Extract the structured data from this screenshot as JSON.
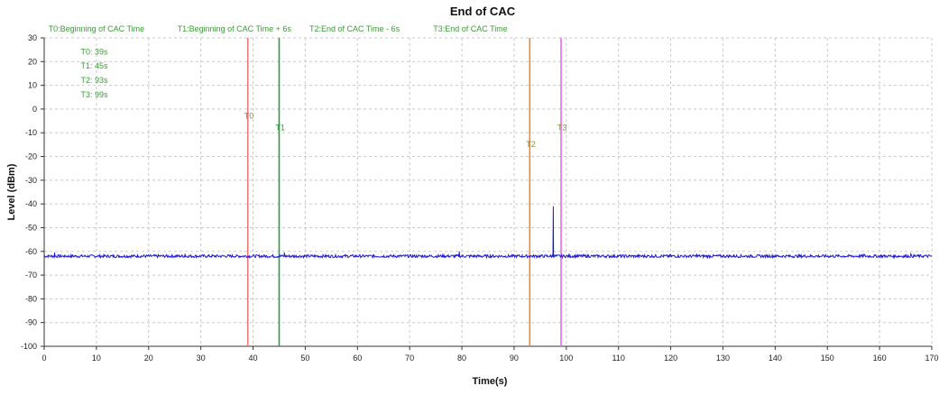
{
  "chart_data": {
    "type": "line",
    "title": "End of CAC",
    "xlabel": "Time(s)",
    "ylabel": "Level (dBm)",
    "xlim": [
      0,
      170
    ],
    "ylim": [
      -100,
      30
    ],
    "x_ticks": [
      0,
      10,
      20,
      30,
      40,
      50,
      60,
      70,
      80,
      90,
      100,
      110,
      120,
      130,
      140,
      150,
      160,
      170
    ],
    "y_ticks": [
      30,
      20,
      10,
      0,
      -10,
      -20,
      -30,
      -40,
      -50,
      -60,
      -70,
      -80,
      -90,
      -100
    ],
    "grid": true,
    "series": [
      {
        "color": "#1a1ad6",
        "baseline": -62,
        "x": [
          0,
          2,
          4,
          9,
          18,
          27,
          38,
          45,
          46,
          57,
          63,
          72,
          79,
          79.5,
          85,
          93,
          97,
          97.5,
          97.6,
          98,
          102,
          112,
          125,
          134,
          140,
          152,
          157,
          166,
          170
        ],
        "y": [
          -62,
          -60.5,
          -62,
          -61.5,
          -62,
          -61,
          -62,
          -62,
          -60.5,
          -62,
          -61.5,
          -62,
          -61.5,
          -60,
          -62,
          -62,
          -62,
          -41,
          -62,
          -62,
          -61.5,
          -62,
          -61,
          -62,
          -61.5,
          -62,
          -61,
          -61,
          -62
        ]
      }
    ],
    "markers": [
      {
        "id": "T0",
        "label": "T0",
        "x": 39,
        "label_y": -4,
        "color": "#f07878"
      },
      {
        "id": "T1",
        "label": "T1",
        "x": 45,
        "label_y": -9,
        "color": "#2c9c42"
      },
      {
        "id": "T2",
        "label": "T2",
        "x": 93,
        "label_y": -16,
        "color": "#e08a3c"
      },
      {
        "id": "T3",
        "label": "T3",
        "x": 99,
        "label_y": -9,
        "color": "#ee66ee"
      }
    ],
    "legend_top": [
      {
        "text": "T0:Beginning of CAC Time",
        "x": 0.8
      },
      {
        "text": "T1:Beginning of CAC Time + 6s",
        "x": 25.5
      },
      {
        "text": "T2:End of CAC Time - 6s",
        "x": 50.8
      },
      {
        "text": "T3:End of CAC Time",
        "x": 74.5
      }
    ],
    "annotations": [
      {
        "text": "T0: 39s",
        "x": 7,
        "y": 23
      },
      {
        "text": "T1: 45s",
        "x": 7,
        "y": 17
      },
      {
        "text": "T2: 93s",
        "x": 7,
        "y": 11
      },
      {
        "text": "T3: 99s",
        "x": 7,
        "y": 5
      }
    ],
    "annotation_color": "#3d9a38"
  }
}
